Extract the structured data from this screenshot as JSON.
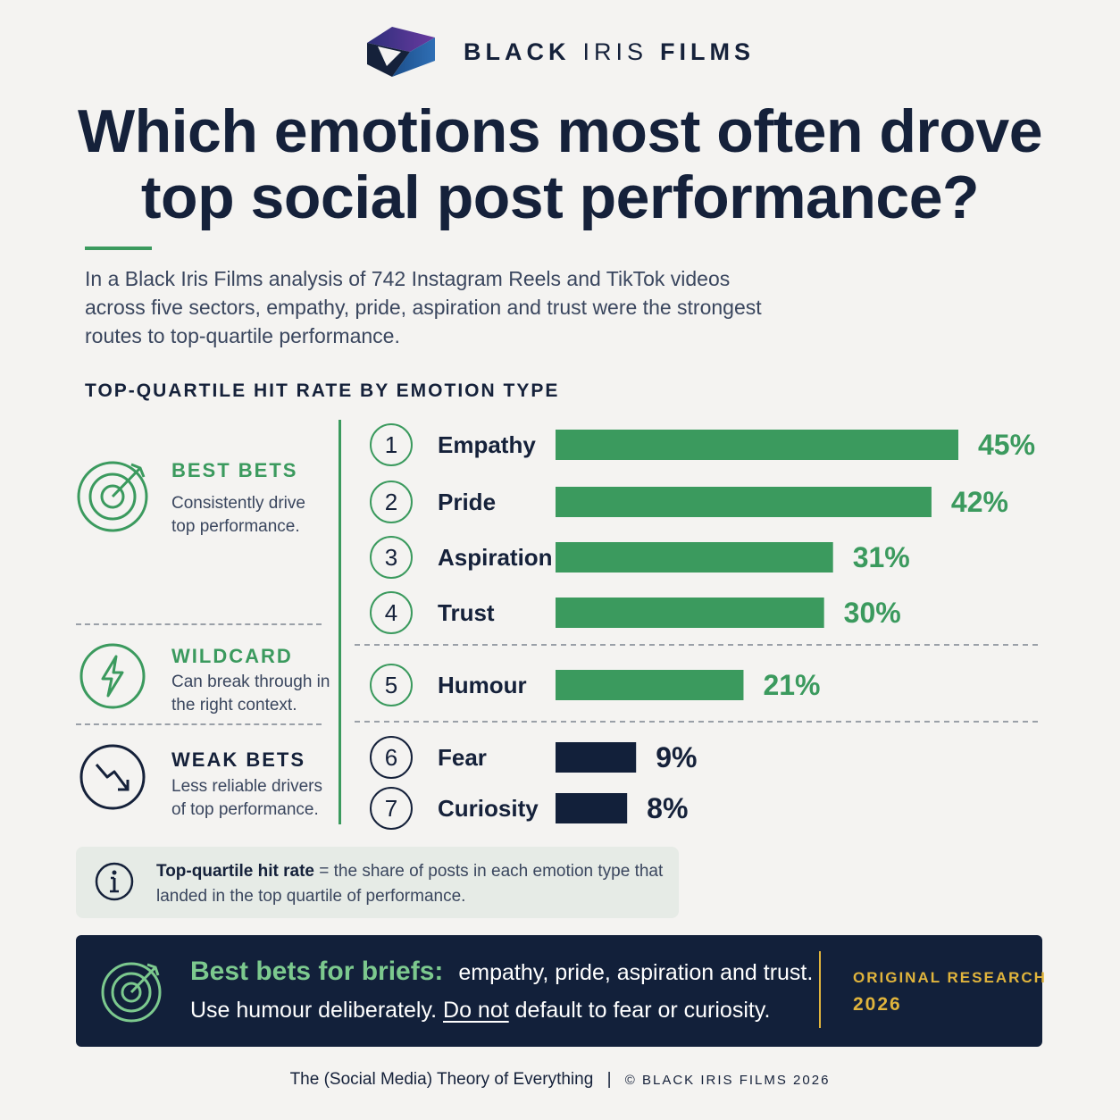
{
  "brand": {
    "name_part1": "BLACK",
    "name_part2": "IRIS",
    "name_part3": "FILMS"
  },
  "title": "Which emotions most often drove top social post performance?",
  "intro": "In a Black Iris Films analysis of 742 Instagram Reels and TikTok videos across five sectors, empathy, pride, aspiration and trust were the strongest routes to top-quartile performance.",
  "section_heading": "TOP-QUARTILE HIT RATE BY EMOTION TYPE",
  "categories_legend": [
    {
      "title": "BEST BETS",
      "desc": "Consistently drive top performance.",
      "icon": "target-icon",
      "color": "#3b9a5e"
    },
    {
      "title": "WILDCARD",
      "desc": "Can break through in the right context.",
      "icon": "lightning-icon",
      "color": "#3b9a5e"
    },
    {
      "title": "WEAK BETS",
      "desc": "Less reliable drivers of top performance.",
      "icon": "trend-down-icon",
      "color": "#15213a"
    }
  ],
  "chart_data": {
    "type": "bar",
    "orientation": "horizontal",
    "categories": [
      "Empathy",
      "Pride",
      "Aspiration",
      "Trust",
      "Humour",
      "Fear",
      "Curiosity"
    ],
    "ranks": [
      "1",
      "2",
      "3",
      "4",
      "5",
      "6",
      "7"
    ],
    "values": [
      45,
      42,
      31,
      30,
      21,
      9,
      8
    ],
    "value_labels": [
      "45%",
      "42%",
      "31%",
      "30%",
      "21%",
      "9%",
      "8%"
    ],
    "groups": [
      "best",
      "best",
      "best",
      "best",
      "wildcard",
      "weak",
      "weak"
    ],
    "title": "TOP-QUARTILE HIT RATE BY EMOTION TYPE",
    "xlabel": "",
    "ylabel": "",
    "xlim": [
      0,
      45
    ],
    "grid": false,
    "colors": {
      "best": "#3b9a5e",
      "wildcard": "#3b9a5e",
      "weak": "#12203a"
    }
  },
  "note": {
    "term": "Top-quartile hit rate",
    "text": "= the share of posts in each emotion type that landed in the top quartile of performance."
  },
  "banner": {
    "headline": "Best bets for briefs:",
    "line1_text": "empathy, pride, aspiration and trust.",
    "line2_prefix": "Use humour deliberately.",
    "line2_underlined": "Do not",
    "line2_suffix": "default to fear or curiosity.",
    "tag_line1": "ORIGINAL RESEARCH",
    "tag_line2": "2026"
  },
  "footer": {
    "text": "The (Social Media) Theory of Everything",
    "separator": "|",
    "copyright": "© BLACK IRIS FILMS 2026"
  }
}
